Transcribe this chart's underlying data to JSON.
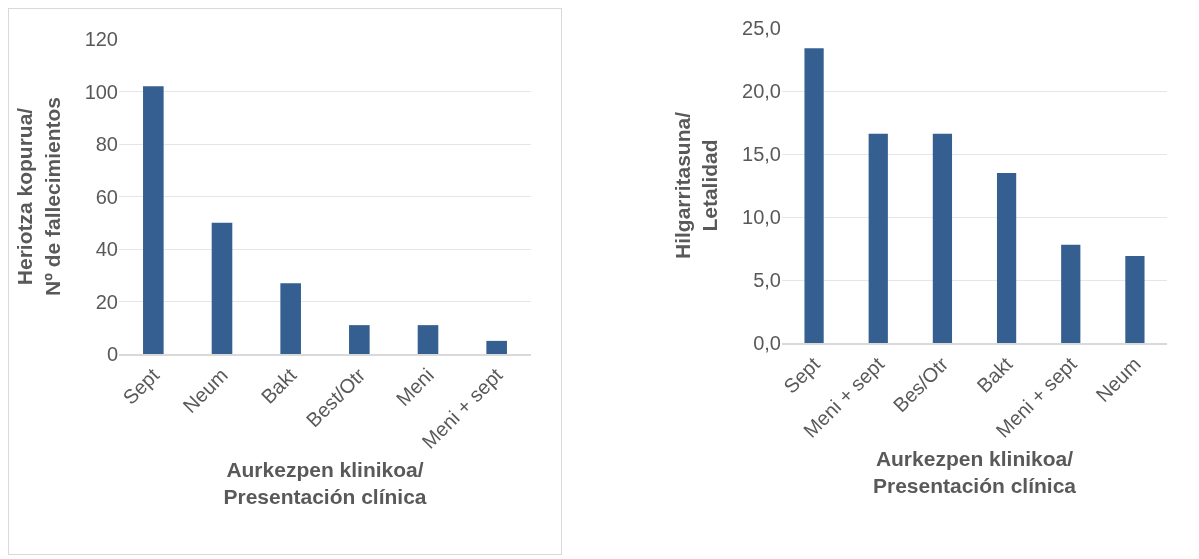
{
  "chart_data": [
    {
      "type": "bar",
      "xlabel": "Aurkezpen klinikoa/\nPresentación clínica",
      "ylabel": "Heriotza kopurua/\nNº de fallecimientos",
      "categories": [
        "Sept",
        "Neum",
        "Bakt",
        "Best/Otr",
        "Meni",
        "Meni + sept"
      ],
      "values": [
        102,
        50,
        27,
        11,
        11,
        5
      ],
      "color": "#365f91",
      "ylim": [
        0,
        120
      ],
      "yticks": [
        0,
        20,
        40,
        60,
        80,
        100,
        120
      ],
      "grid": "y",
      "legend": false
    },
    {
      "type": "bar",
      "xlabel": "Aurkezpen klinikoa/\nPresentación clínica",
      "ylabel": "Hilgarritasuna/\nLetalidad",
      "categories": [
        "Sept",
        "Meni + sept",
        "Bes/Otr",
        "Bakt",
        "Meni + sept",
        "Neum"
      ],
      "values": [
        23.4,
        16.6,
        16.6,
        13.5,
        7.8,
        6.9
      ],
      "color": "#365f91",
      "ylim": [
        0,
        25
      ],
      "yticks": [
        {
          "value": 0,
          "label": "0,0"
        },
        {
          "value": 5,
          "label": "5,0"
        },
        {
          "value": 10,
          "label": "10,0"
        },
        {
          "value": 15,
          "label": "15,0"
        },
        {
          "value": 20,
          "label": "20,0"
        },
        {
          "value": 25,
          "label": "25,0"
        }
      ],
      "grid": "y",
      "legend": false
    }
  ]
}
